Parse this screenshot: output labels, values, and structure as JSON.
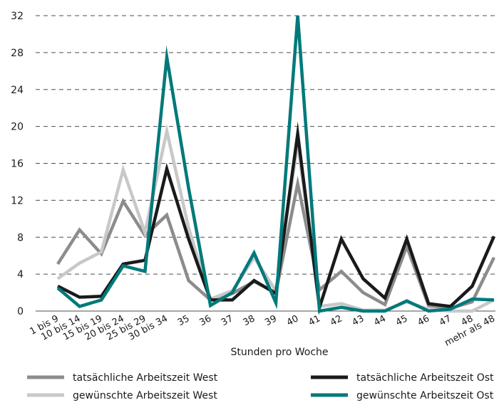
{
  "chart_data": {
    "type": "line",
    "title": "",
    "xlabel": "Stunden pro Woche",
    "ylabel": "",
    "ylim": [
      0,
      32
    ],
    "yticks": [
      "0",
      "4",
      "8",
      "12",
      "16",
      "20",
      "24",
      "28",
      "32"
    ],
    "grid": "horizontal dashed",
    "legend_position": "bottom",
    "categories": [
      "1 bis 9",
      "10 bis 14",
      "15 bis 19",
      "20 bis 24",
      "25 bis 29",
      "30 bis 34",
      "35",
      "36",
      "37",
      "38",
      "39",
      "40",
      "41",
      "42",
      "43",
      "44",
      "45",
      "46",
      "47",
      "48",
      "mehr als 48"
    ],
    "series": [
      {
        "name": "tatsächliche Arbeitszeit West",
        "color": "#8c8c8c",
        "values": [
          5.1,
          8.8,
          6.2,
          11.9,
          8.2,
          10.4,
          3.3,
          1.2,
          1.9,
          3.2,
          2.0,
          13.8,
          2.3,
          4.3,
          2.0,
          0.7,
          7.0,
          0.6,
          0.3,
          1.0,
          5.8
        ]
      },
      {
        "name": "gewünschte Arbeitszeit West",
        "color": "#c8c8c8",
        "values": [
          3.5,
          5.2,
          6.4,
          15.3,
          8.5,
          19.5,
          9.0,
          1.3,
          2.2,
          5.8,
          2.2,
          18.2,
          0.5,
          0.8,
          0.1,
          0.1,
          1.0,
          0.2,
          0.0,
          0.0,
          1.2
        ]
      },
      {
        "name": "tatsächliche Arbeitszeit Ost",
        "color": "#1a1a1a",
        "values": [
          2.7,
          1.5,
          1.6,
          5.1,
          5.5,
          15.4,
          7.8,
          1.2,
          1.2,
          3.3,
          1.9,
          19.2,
          0.4,
          7.8,
          3.5,
          1.4,
          7.8,
          0.8,
          0.5,
          2.7,
          8.1
        ]
      },
      {
        "name": "gewünschte Arbeitszeit Ost",
        "color": "#00797a",
        "values": [
          2.5,
          0.5,
          1.2,
          4.9,
          4.3,
          27.5,
          13.3,
          0.6,
          2.0,
          6.3,
          0.9,
          32.0,
          0.0,
          0.4,
          0.0,
          0.0,
          1.1,
          0.0,
          0.2,
          1.3,
          1.2
        ]
      }
    ]
  }
}
